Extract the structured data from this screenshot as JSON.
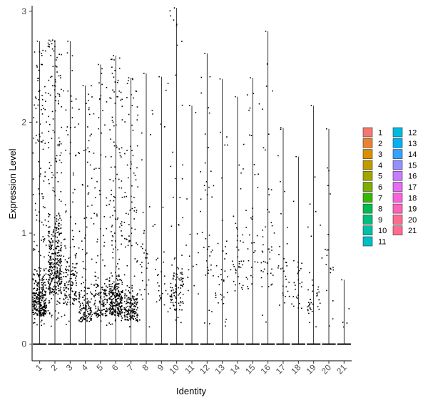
{
  "chart_data": {
    "type": "scatter",
    "subtype": "violin-jitter",
    "xlabel": "Identity",
    "ylabel": "Expression Level",
    "ylim": [
      -0.15,
      3.05
    ],
    "yticks": [
      0,
      1,
      2,
      3
    ],
    "grid": false,
    "legend_position": "right",
    "categories": [
      "1",
      "2",
      "3",
      "4",
      "5",
      "6",
      "7",
      "8",
      "9",
      "10",
      "11",
      "12",
      "13",
      "14",
      "15",
      "16",
      "17",
      "18",
      "19",
      "20",
      "21"
    ],
    "colors": [
      "#F8766D",
      "#EA8331",
      "#D89000",
      "#C09B00",
      "#A3A500",
      "#7CAE00",
      "#39B600",
      "#00BB4E",
      "#00BF7D",
      "#00C1A3",
      "#00BFC4",
      "#00BAE0",
      "#00B0F6",
      "#35A2FF",
      "#9590FF",
      "#C77CFF",
      "#E76BF3",
      "#FA62DB",
      "#FF62BC",
      "#FF6C91",
      "#FF6C91"
    ],
    "series": [
      {
        "name": "1",
        "max": 2.73,
        "n": 380,
        "center": 0.5
      },
      {
        "name": "2",
        "max": 2.74,
        "n": 420,
        "center": 0.9
      },
      {
        "name": "3",
        "max": 2.73,
        "n": 160,
        "center": 0.7
      },
      {
        "name": "4",
        "max": 2.33,
        "n": 170,
        "center": 0.4
      },
      {
        "name": "5",
        "max": 2.52,
        "n": 170,
        "center": 0.5
      },
      {
        "name": "6",
        "max": 2.6,
        "n": 340,
        "center": 0.5
      },
      {
        "name": "7",
        "max": 2.4,
        "n": 230,
        "center": 0.4
      },
      {
        "name": "8",
        "max": 2.44,
        "n": 35,
        "center": 0.9
      },
      {
        "name": "9",
        "max": 2.41,
        "n": 30,
        "center": 0.7
      },
      {
        "name": "10",
        "max": 3.03,
        "n": 110,
        "center": 0.6
      },
      {
        "name": "11",
        "max": 2.15,
        "n": 15,
        "center": 0.8
      },
      {
        "name": "12",
        "max": 2.62,
        "n": 40,
        "center": 1.2
      },
      {
        "name": "13",
        "max": 2.39,
        "n": 35,
        "center": 0.8
      },
      {
        "name": "14",
        "max": 2.23,
        "n": 40,
        "center": 0.9
      },
      {
        "name": "15",
        "max": 2.4,
        "n": 35,
        "center": 1.0
      },
      {
        "name": "16",
        "max": 2.82,
        "n": 45,
        "center": 1.0
      },
      {
        "name": "17",
        "max": 1.95,
        "n": 30,
        "center": 0.7
      },
      {
        "name": "18",
        "max": 1.69,
        "n": 25,
        "center": 0.6
      },
      {
        "name": "19",
        "max": 2.15,
        "n": 40,
        "center": 0.5
      },
      {
        "name": "20",
        "max": 1.94,
        "n": 20,
        "center": 1.3
      },
      {
        "name": "21",
        "max": 0.58,
        "n": 4,
        "center": 0.3
      }
    ]
  }
}
